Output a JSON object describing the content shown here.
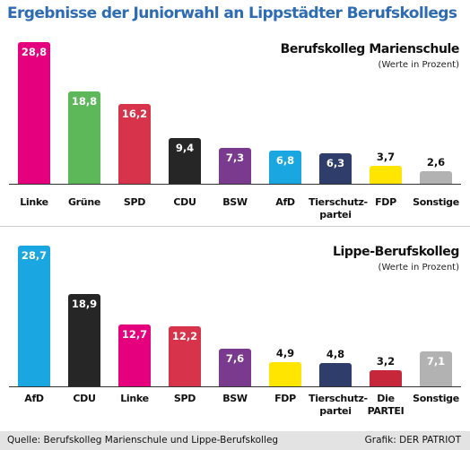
{
  "title": "Ergebnisse der Juniorwahl an Lippstädter Berufskollegs",
  "source": "Quelle: Berufskolleg Marienschule und Lippe-Berufskolleg",
  "credit": "Grafik: DER PATRIOT",
  "chart_data": [
    {
      "type": "bar",
      "title": "Berufskolleg Marienschule",
      "subtitle": "(Werte in Prozent)",
      "categories": [
        "Linke",
        "Grüne",
        "SPD",
        "CDU",
        "BSW",
        "AfD",
        "Tierschutz-\npartei",
        "FDP",
        "Sonstige"
      ],
      "values": [
        28.8,
        18.8,
        16.2,
        9.4,
        7.3,
        6.8,
        6.3,
        3.7,
        2.6
      ],
      "value_labels": [
        "28,8",
        "18,8",
        "16,2",
        "9,4",
        "7,3",
        "6,8",
        "6,3",
        "3,7",
        "2,6"
      ],
      "colors": [
        "#e5007d",
        "#5db85a",
        "#d7334a",
        "#262626",
        "#7a3a8e",
        "#1aa6e0",
        "#2e3d6a",
        "#ffe500",
        "#b2b2b2"
      ]
    },
    {
      "type": "bar",
      "title": "Lippe-Berufskolleg",
      "subtitle": "(Werte in Prozent)",
      "categories": [
        "AfD",
        "CDU",
        "Linke",
        "SPD",
        "BSW",
        "FDP",
        "Tierschutz-\npartei",
        "Die\nPARTEI",
        "Sonstige"
      ],
      "values": [
        28.7,
        18.9,
        12.7,
        12.2,
        7.6,
        4.9,
        4.8,
        3.2,
        7.1
      ],
      "value_labels": [
        "28,7",
        "18,9",
        "12,7",
        "12,2",
        "7,6",
        "4,9",
        "4,8",
        "3,2",
        "7,1"
      ],
      "colors": [
        "#1aa6e0",
        "#262626",
        "#e5007d",
        "#d7334a",
        "#7a3a8e",
        "#ffe500",
        "#2e3d6a",
        "#c7273b",
        "#b2b2b2"
      ]
    }
  ]
}
